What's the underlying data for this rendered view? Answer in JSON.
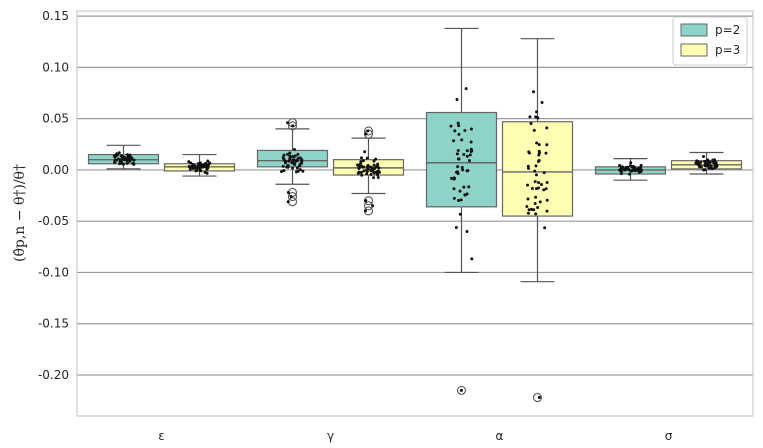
{
  "chart_data": {
    "type": "box",
    "ylabel": "(θ̂p,n − θ†)/θ†",
    "ylim": [
      -0.24,
      0.155
    ],
    "yticks": [
      0.15,
      0.1,
      0.05,
      0.0,
      -0.05,
      -0.1,
      -0.15,
      -0.2
    ],
    "ytick_labels": [
      "0.15",
      "0.10",
      "0.05",
      "0.00",
      "-0.05",
      "-0.10",
      "-0.15",
      "-0.20"
    ],
    "grid": true,
    "legend_position": "top-right",
    "categories": [
      "ε",
      "γ",
      "α",
      "σ"
    ],
    "series": [
      {
        "name": "p=2",
        "color": "#8dd3c7",
        "boxes": [
          {
            "q1": 0.006,
            "median": 0.01,
            "q3": 0.015,
            "whisker_low": 0.001,
            "whisker_high": 0.024,
            "outliers": []
          },
          {
            "q1": 0.003,
            "median": 0.009,
            "q3": 0.019,
            "whisker_low": -0.014,
            "whisker_high": 0.04,
            "outliers": [
              0.046,
              0.043,
              -0.022,
              -0.026,
              -0.031
            ]
          },
          {
            "q1": -0.036,
            "median": 0.007,
            "q3": 0.056,
            "whisker_low": -0.1,
            "whisker_high": 0.138,
            "outliers": [
              -0.215
            ]
          },
          {
            "q1": -0.004,
            "median": 0.0,
            "q3": 0.003,
            "whisker_low": -0.01,
            "whisker_high": 0.011,
            "outliers": []
          }
        ]
      },
      {
        "name": "p=3",
        "color": "#ffffb3",
        "boxes": [
          {
            "q1": -0.001,
            "median": 0.003,
            "q3": 0.006,
            "whisker_low": -0.006,
            "whisker_high": 0.015,
            "outliers": []
          },
          {
            "q1": -0.005,
            "median": 0.002,
            "q3": 0.01,
            "whisker_low": -0.023,
            "whisker_high": 0.031,
            "outliers": [
              0.038,
              0.035,
              -0.03,
              -0.035,
              -0.04
            ]
          },
          {
            "q1": -0.045,
            "median": -0.002,
            "q3": 0.047,
            "whisker_low": -0.109,
            "whisker_high": 0.128,
            "outliers": [
              -0.222
            ]
          },
          {
            "q1": 0.001,
            "median": 0.005,
            "q3": 0.009,
            "whisker_low": -0.004,
            "whisker_high": 0.017,
            "outliers": []
          }
        ]
      }
    ]
  }
}
